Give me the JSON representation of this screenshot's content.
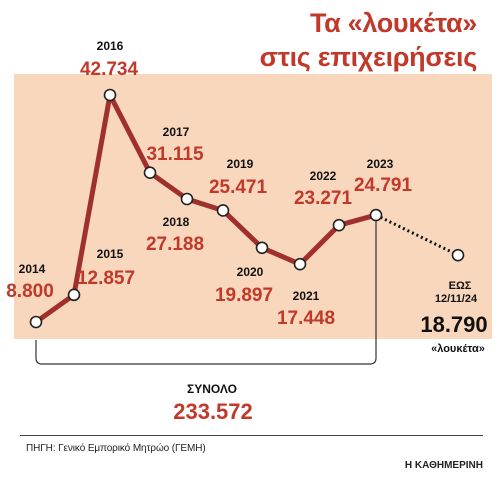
{
  "title_line1": "Τα «λουκέτα»",
  "title_line2": "στις επιχειρήσεις",
  "source": "ΠΗΓΗ: Γενικό Εμπορικό Μητρώο (ΓΕΜΗ)",
  "credit": "Η ΚΑΘΗΜΕΡΙΝΗ",
  "colors": {
    "accent": "#c0392b",
    "line": "#a0302c",
    "panel": "#f8d7bd",
    "text": "#111111"
  },
  "chart_data": {
    "type": "line",
    "x": [
      "2014",
      "2015",
      "2016",
      "2017",
      "2018",
      "2019",
      "2020",
      "2021",
      "2022",
      "2023"
    ],
    "values": [
      8800,
      12857,
      42734,
      31115,
      27188,
      25471,
      19897,
      17448,
      23271,
      24791
    ],
    "value_labels": [
      "8.800",
      "12.857",
      "42.734",
      "31.115",
      "27.188",
      "25.471",
      "19.897",
      "17.448",
      "23.271",
      "24.791"
    ],
    "partial": {
      "label_line1": "ΕΩΣ",
      "label_line2": "12/11/24",
      "value": 18790,
      "value_label": "18.790",
      "unit_label": "«λουκέτα»"
    },
    "total": {
      "label": "ΣΥΝΟΛΟ",
      "value": 233572,
      "value_label": "233.572"
    },
    "grid": false
  }
}
